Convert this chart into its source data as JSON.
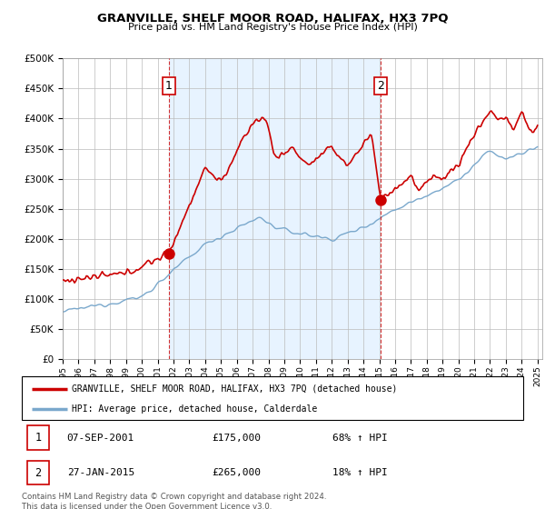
{
  "title": "GRANVILLE, SHELF MOOR ROAD, HALIFAX, HX3 7PQ",
  "subtitle": "Price paid vs. HM Land Registry's House Price Index (HPI)",
  "legend_entry1": "GRANVILLE, SHELF MOOR ROAD, HALIFAX, HX3 7PQ (detached house)",
  "legend_entry2": "HPI: Average price, detached house, Calderdale",
  "table_row1": [
    "1",
    "07-SEP-2001",
    "£175,000",
    "68% ↑ HPI"
  ],
  "table_row2": [
    "2",
    "27-JAN-2015",
    "£265,000",
    "18% ↑ HPI"
  ],
  "footnote": "Contains HM Land Registry data © Crown copyright and database right 2024.\nThis data is licensed under the Open Government Licence v3.0.",
  "sale1_year": 2001.69,
  "sale1_price": 175000,
  "sale2_year": 2015.07,
  "sale2_price": 265000,
  "red_color": "#cc0000",
  "blue_color": "#7aa8cc",
  "bg_fill": "#ddeeff",
  "grid_color": "#bbbbbb",
  "ylim": [
    0,
    500000
  ],
  "yticks": [
    0,
    50000,
    100000,
    150000,
    200000,
    250000,
    300000,
    350000,
    400000,
    450000,
    500000
  ],
  "xstart": 1995,
  "xend": 2025
}
